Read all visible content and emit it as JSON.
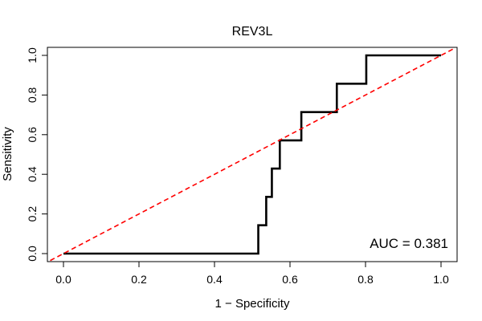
{
  "chart_data": {
    "type": "line",
    "title": "REV3L",
    "xlabel": "1 − Specificity",
    "ylabel": "Sensitivity",
    "xlim": [
      0,
      1
    ],
    "ylim": [
      0,
      1
    ],
    "x_ticks": [
      0.0,
      0.2,
      0.4,
      0.6,
      0.8,
      1.0
    ],
    "x_tick_labels": [
      "0.0",
      "0.2",
      "0.4",
      "0.6",
      "0.8",
      "1.0"
    ],
    "y_ticks": [
      0.0,
      0.2,
      0.4,
      0.6,
      0.8,
      1.0
    ],
    "y_tick_labels": [
      "0.0",
      "0.2",
      "0.4",
      "0.6",
      "0.8",
      "1.0"
    ],
    "grid": false,
    "series": [
      {
        "name": "ROC curve",
        "color": "#000000",
        "style": "step",
        "x": [
          0.0,
          0.516,
          0.516,
          0.537,
          0.537,
          0.552,
          0.552,
          0.573,
          0.573,
          0.63,
          0.63,
          0.724,
          0.724,
          0.802,
          0.802,
          1.0
        ],
        "y": [
          0.0,
          0.0,
          0.143,
          0.143,
          0.286,
          0.286,
          0.429,
          0.429,
          0.571,
          0.571,
          0.714,
          0.714,
          0.857,
          0.857,
          1.0,
          1.0
        ]
      },
      {
        "name": "Reference diagonal",
        "color": "#ff0000",
        "style": "dashed",
        "x": [
          -0.035,
          1.035
        ],
        "y": [
          -0.035,
          1.035
        ]
      }
    ],
    "annotations": [
      {
        "text": "AUC = 0.381",
        "position": "bottom-right"
      }
    ]
  }
}
